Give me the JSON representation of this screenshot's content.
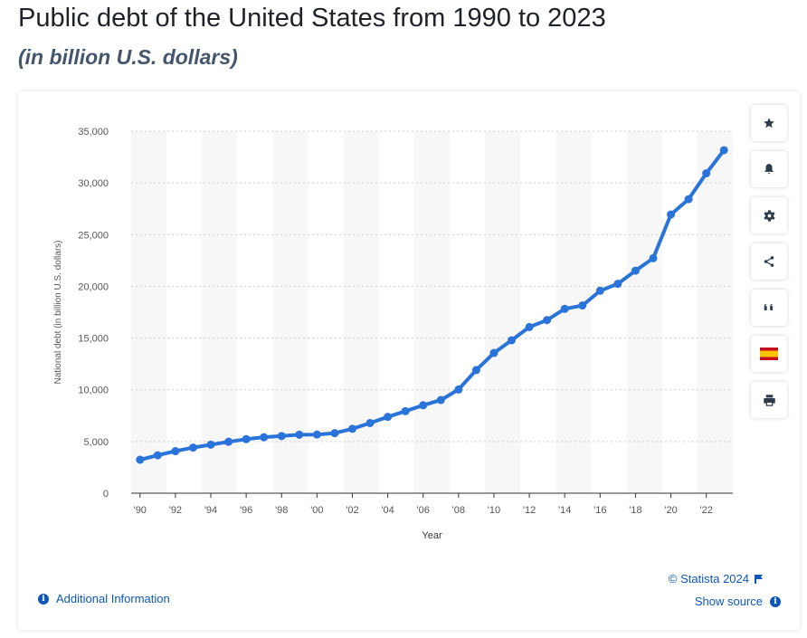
{
  "header": {
    "title": "Public debt of the United States from 1990 to 2023",
    "subtitle": "(in billion U.S. dollars)"
  },
  "toolbar": {
    "items": [
      {
        "icon": "star-icon"
      },
      {
        "icon": "bell-icon"
      },
      {
        "icon": "gear-icon"
      },
      {
        "icon": "share-icon"
      },
      {
        "icon": "quote-icon"
      },
      {
        "icon": "spain-flag-icon"
      },
      {
        "icon": "print-icon"
      }
    ]
  },
  "footer": {
    "additional_info": "Additional Information",
    "credit": "© Statista 2024",
    "show_source": "Show source",
    "info_symbol": "i"
  },
  "colors": {
    "line": "#2a73d9",
    "link": "#0e57b8",
    "stripe": "#f7f7f7"
  },
  "chart_data": {
    "type": "line",
    "title": "",
    "xlabel": "Year",
    "ylabel": "National debt (in billion U.S. dollars)",
    "ylim": [
      0,
      35000
    ],
    "yticks": [
      0,
      5000,
      10000,
      15000,
      20000,
      25000,
      30000,
      35000
    ],
    "ytick_labels": [
      "0",
      "5,000",
      "10,000",
      "15,000",
      "20,000",
      "25,000",
      "30,000",
      "35,000"
    ],
    "xticks": [
      1990,
      1992,
      1994,
      1996,
      1998,
      2000,
      2002,
      2004,
      2006,
      2008,
      2010,
      2012,
      2014,
      2016,
      2018,
      2020,
      2022
    ],
    "xtick_labels": [
      "'90",
      "'92",
      "'94",
      "'96",
      "'98",
      "'00",
      "'02",
      "'04",
      "'06",
      "'08",
      "'10",
      "'12",
      "'14",
      "'16",
      "'18",
      "'20",
      "'22"
    ],
    "grid": true,
    "legend": "none",
    "x": [
      1990,
      1991,
      1992,
      1993,
      1994,
      1995,
      1996,
      1997,
      1998,
      1999,
      2000,
      2001,
      2002,
      2003,
      2004,
      2005,
      2006,
      2007,
      2008,
      2009,
      2010,
      2011,
      2012,
      2013,
      2014,
      2015,
      2016,
      2017,
      2018,
      2019,
      2020,
      2021,
      2022,
      2023
    ],
    "y": [
      3233,
      3665,
      4065,
      4411,
      4693,
      4974,
      5225,
      5413,
      5526,
      5656,
      5674,
      5807,
      6228,
      6783,
      7379,
      7933,
      8507,
      9008,
      10025,
      11910,
      13562,
      14790,
      16066,
      16738,
      17824,
      18151,
      19573,
      20245,
      21516,
      22719,
      26945,
      28428,
      30929,
      33167
    ]
  }
}
